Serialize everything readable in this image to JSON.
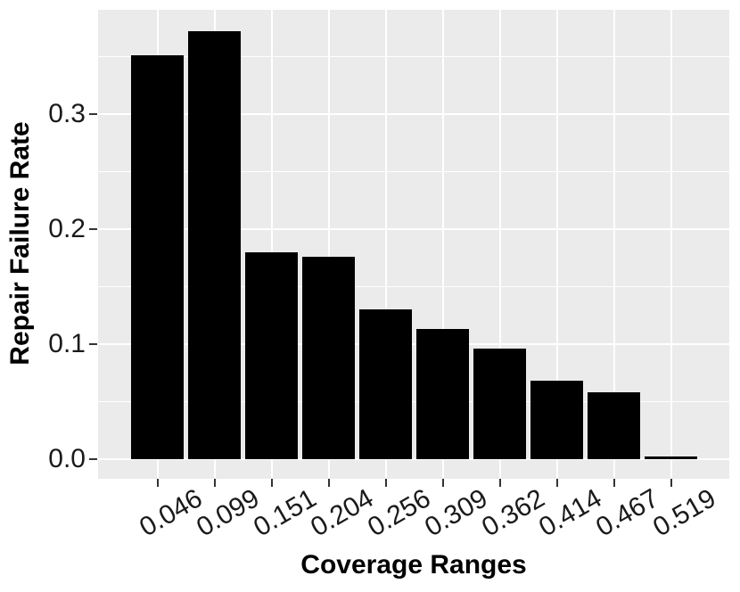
{
  "chart_data": {
    "type": "bar",
    "title": "",
    "xlabel": "Coverage Ranges",
    "ylabel": "Repair Failure Rate",
    "categories": [
      "0.046",
      "0.099",
      "0.151",
      "0.204",
      "0.256",
      "0.309",
      "0.362",
      "0.414",
      "0.467",
      "0.519"
    ],
    "values": [
      0.351,
      0.372,
      0.18,
      0.176,
      0.13,
      0.113,
      0.096,
      0.068,
      0.058,
      0.002
    ],
    "series": [
      {
        "name": "Repair Failure Rate",
        "values": [
          0.351,
          0.372,
          0.18,
          0.176,
          0.13,
          0.113,
          0.096,
          0.068,
          0.058,
          0.002
        ]
      }
    ],
    "y_tick_labels": [
      "0.0",
      "0.1",
      "0.2",
      "0.3"
    ],
    "y_tick_values": [
      0.0,
      0.1,
      0.2,
      0.3
    ],
    "y_minor_values": [
      0.05,
      0.15,
      0.25,
      0.35
    ],
    "ylim": [
      -0.017,
      0.391
    ],
    "grid": "on",
    "legend_position": "none",
    "colors": {
      "bar_fill": "#000000",
      "panel_background": "#EBEBEB",
      "gridline": "#FFFFFF",
      "tick_mark": "#333333",
      "axis_text": "#1a1a1a",
      "axis_title": "#000000",
      "figure_background": "#FFFFFF"
    }
  }
}
